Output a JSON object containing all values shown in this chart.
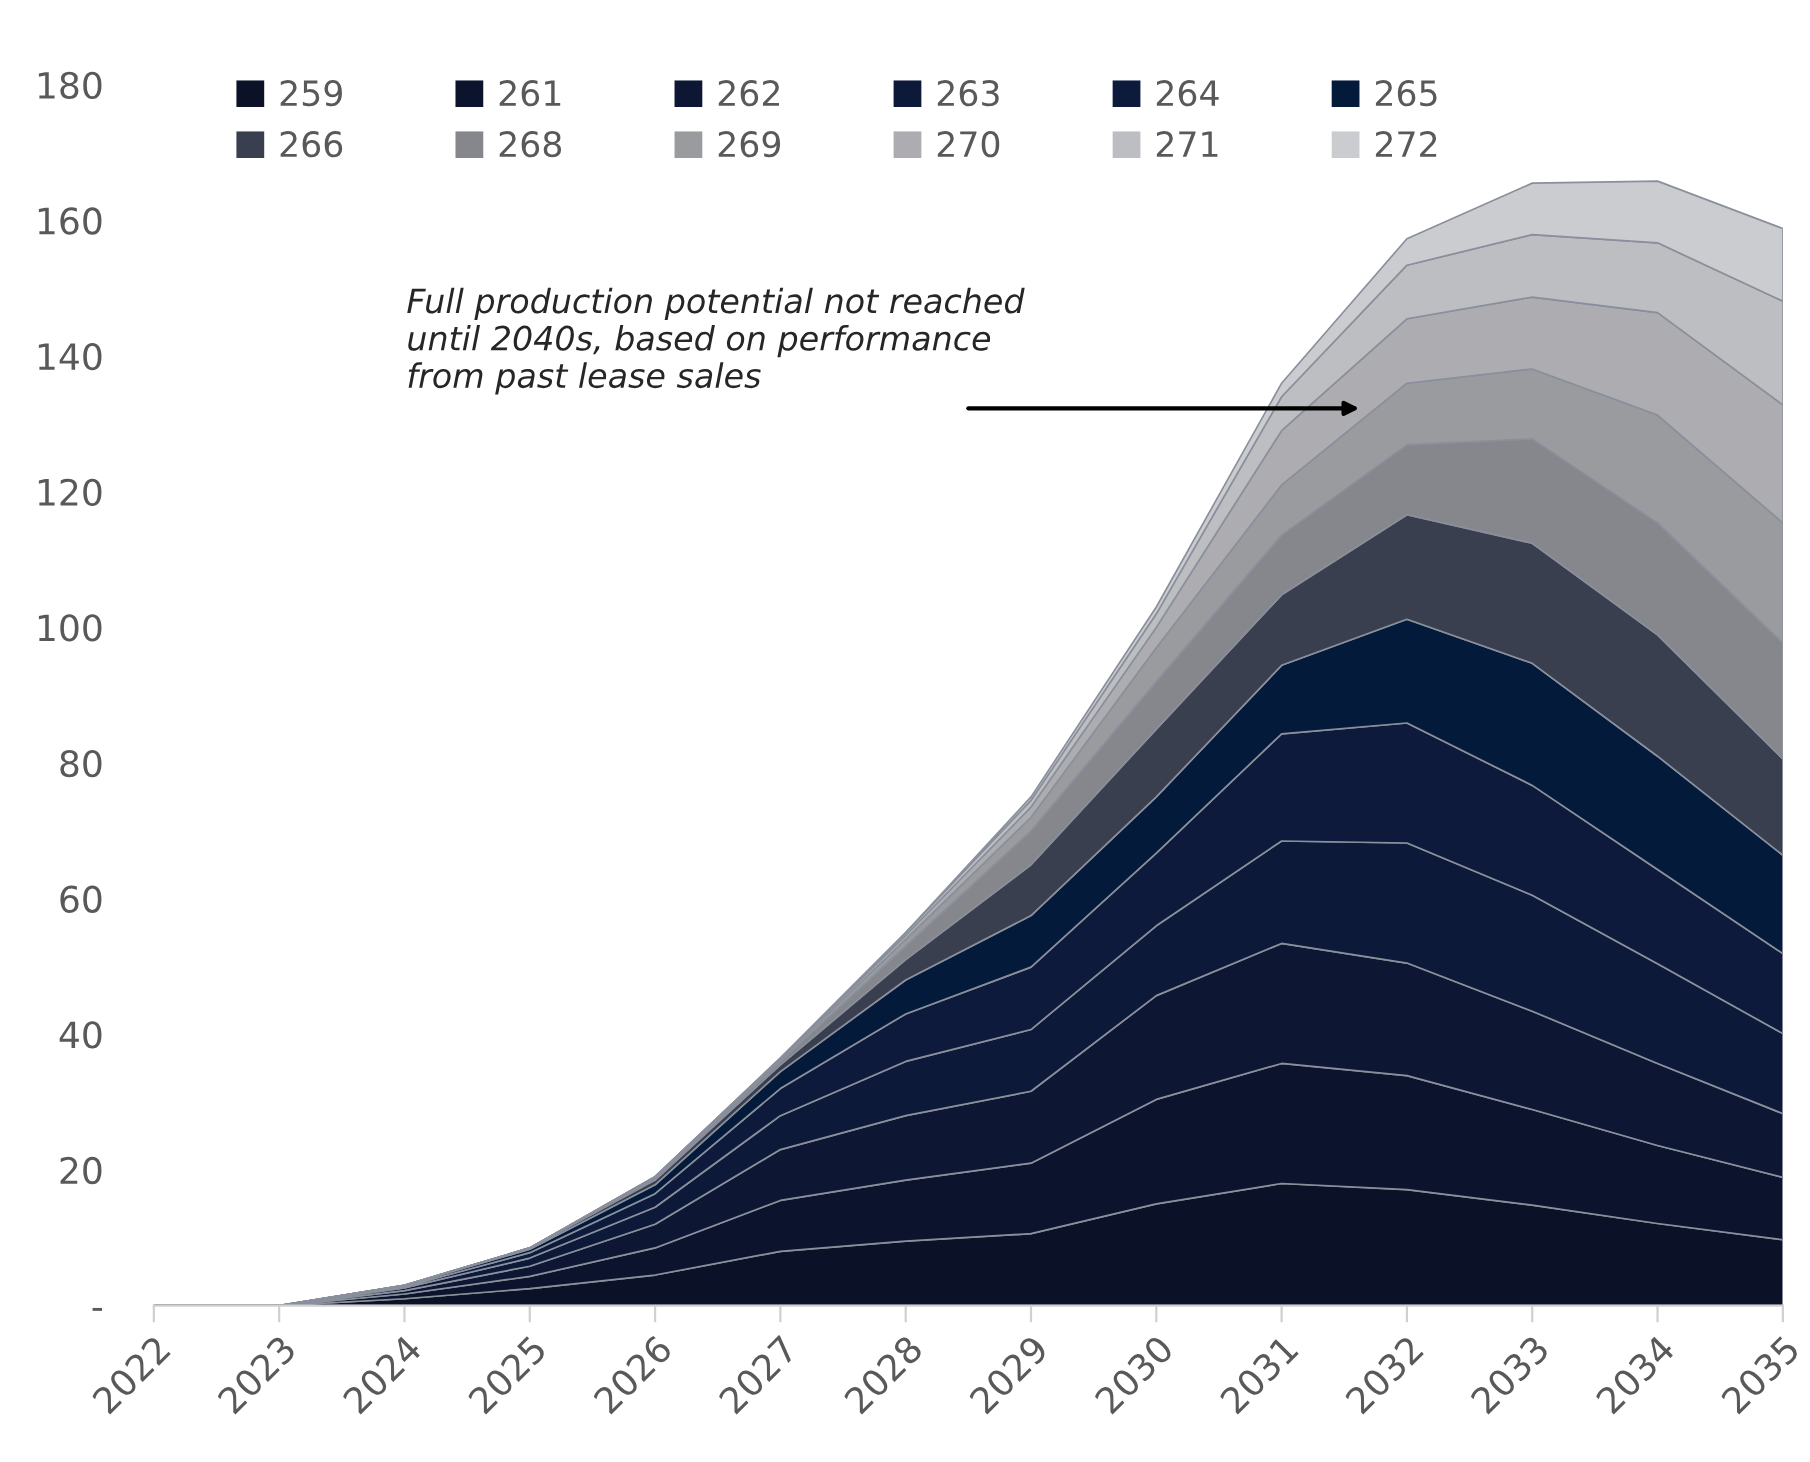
{
  "chart_data": {
    "type": "area",
    "stacked": true,
    "categories": [
      "2022",
      "2023",
      "2024",
      "2025",
      "2026",
      "2027",
      "2028",
      "2029",
      "2030",
      "2031",
      "2032",
      "2033",
      "2034",
      "2035"
    ],
    "series": [
      {
        "name": "259",
        "color": "#0b1126",
        "values": [
          0,
          0,
          1,
          2.5,
          4.5,
          8,
          9.5,
          10.6,
          15,
          18,
          17.1,
          14.8,
          12.1,
          9.7
        ]
      },
      {
        "name": "261",
        "color": "#0c142d",
        "values": [
          0,
          0,
          0.7,
          1.8,
          4,
          7.5,
          9,
          10.4,
          15.4,
          17.7,
          16.8,
          14.1,
          11.5,
          9.2
        ]
      },
      {
        "name": "262",
        "color": "#0d1733",
        "values": [
          0,
          0,
          0.5,
          1.5,
          3.5,
          7.5,
          9.5,
          10.6,
          15.3,
          17.7,
          16.6,
          14.5,
          12.1,
          9.4
        ]
      },
      {
        "name": "263",
        "color": "#0d1938",
        "values": [
          0,
          0,
          0.4,
          1.2,
          2.5,
          5,
          8,
          9.1,
          10.3,
          15.1,
          17.7,
          17.1,
          14.7,
          11.8
        ]
      },
      {
        "name": "264",
        "color": "#0e1a3c",
        "values": [
          0,
          0,
          0.2,
          0.8,
          2,
          4,
          7,
          9.2,
          10.7,
          15.8,
          17.7,
          16.2,
          13.9,
          11.8
        ]
      },
      {
        "name": "265",
        "color": "#041a3a",
        "values": [
          0,
          0,
          0.2,
          0.5,
          1.3,
          2.5,
          5,
          7.6,
          8.3,
          10.1,
          15.3,
          18,
          16.7,
          14.5
        ]
      },
      {
        "name": "266",
        "color": "#3a3f4f",
        "values": [
          0,
          0,
          0,
          0.2,
          0.7,
          1,
          3,
          7.5,
          10,
          10.4,
          15.4,
          17.7,
          17.9,
          14.2
        ]
      },
      {
        "name": "268",
        "color": "#86878c",
        "values": [
          0,
          0,
          0,
          0,
          0.3,
          0.5,
          2,
          5,
          7,
          8.8,
          10.3,
          15.4,
          16.5,
          17.1
        ]
      },
      {
        "name": "269",
        "color": "#9a9b9f",
        "values": [
          0,
          0,
          0,
          0,
          0.2,
          0.3,
          1,
          2,
          5,
          7.4,
          9.1,
          10.3,
          15.9,
          17.7
        ]
      },
      {
        "name": "270",
        "color": "#adadb1",
        "values": [
          0,
          0,
          0,
          0,
          0,
          0.2,
          0.6,
          1.5,
          3,
          8,
          9.5,
          10.6,
          15.1,
          17.4
        ]
      },
      {
        "name": "271",
        "color": "#bdbec1",
        "values": [
          0,
          0,
          0,
          0,
          0,
          0,
          0.4,
          1,
          2,
          5,
          7.9,
          9.2,
          10.3,
          15.3
        ]
      },
      {
        "name": "272",
        "color": "#cbcccf",
        "values": [
          0,
          0,
          0,
          0,
          0,
          0,
          0,
          0.5,
          1,
          2,
          3.9,
          7.6,
          9.1,
          10.7
        ]
      }
    ],
    "ylim": [
      0,
      180
    ],
    "yticks": [
      {
        "value": 0,
        "label": "-"
      },
      20,
      40,
      60,
      80,
      100,
      120,
      140,
      160,
      180
    ],
    "legend": "top",
    "grid": false,
    "annotations": [
      "Full production potential not reached\nuntil 2040s, based on performance\nfrom past lease sales"
    ]
  }
}
